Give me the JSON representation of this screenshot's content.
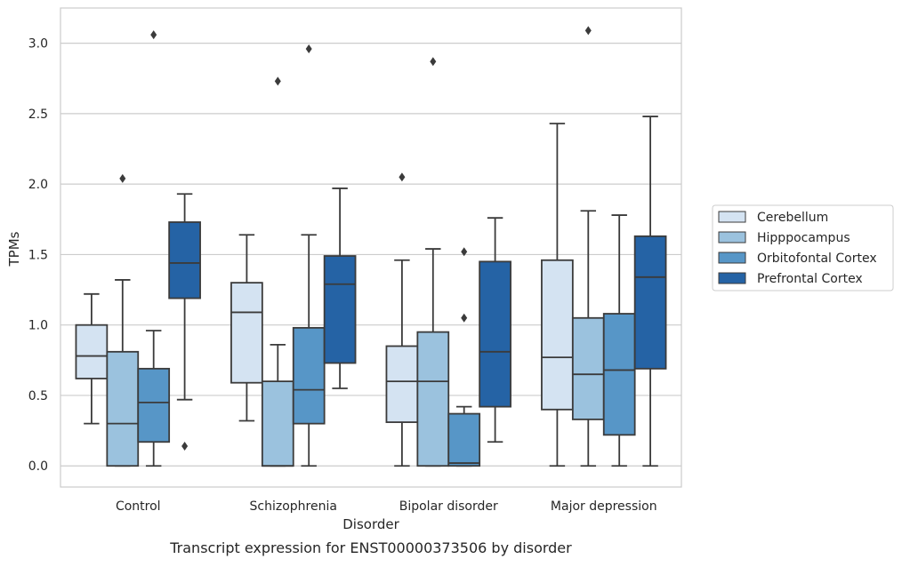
{
  "chart_data": {
    "type": "box",
    "xlabel": "Disorder",
    "ylabel": "TPMs",
    "caption": "Transcript expression for ENST00000373506 by disorder",
    "ylim": [
      -0.15,
      3.25
    ],
    "yticks": [
      0.0,
      0.5,
      1.0,
      1.5,
      2.0,
      2.5,
      3.0
    ],
    "ytick_labels": [
      "0.0",
      "0.5",
      "1.0",
      "1.5",
      "2.0",
      "2.5",
      "3.0"
    ],
    "grid": "horizontal",
    "legend_position": "right",
    "categories": [
      "Control",
      "Schizophrenia",
      "Bipolar disorder",
      "Major depression"
    ],
    "series": [
      {
        "name": "Cerebellum",
        "color": "#d4e3f2",
        "boxes": [
          {
            "min": 0.3,
            "q1": 0.62,
            "median": 0.78,
            "q3": 1.0,
            "max": 1.22,
            "outliers": []
          },
          {
            "min": 0.32,
            "q1": 0.59,
            "median": 1.09,
            "q3": 1.3,
            "max": 1.64,
            "outliers": []
          },
          {
            "min": 0.0,
            "q1": 0.31,
            "median": 0.6,
            "q3": 0.85,
            "max": 1.46,
            "outliers": [
              2.05
            ]
          },
          {
            "min": 0.0,
            "q1": 0.4,
            "median": 0.77,
            "q3": 1.46,
            "max": 2.43,
            "outliers": []
          }
        ]
      },
      {
        "name": "Hipppocampus",
        "color": "#9bc2de",
        "boxes": [
          {
            "min": 0.0,
            "q1": 0.0,
            "median": 0.3,
            "q3": 0.81,
            "max": 1.32,
            "outliers": [
              2.04
            ]
          },
          {
            "min": 0.0,
            "q1": 0.0,
            "median": 0.0,
            "q3": 0.6,
            "max": 0.86,
            "outliers": [
              2.73
            ]
          },
          {
            "min": 0.0,
            "q1": 0.0,
            "median": 0.6,
            "q3": 0.95,
            "max": 1.54,
            "outliers": [
              2.87
            ]
          },
          {
            "min": 0.0,
            "q1": 0.33,
            "median": 0.65,
            "q3": 1.05,
            "max": 1.81,
            "outliers": [
              3.09
            ]
          }
        ]
      },
      {
        "name": "Orbitofontal Cortex",
        "color": "#5796c7",
        "boxes": [
          {
            "min": 0.0,
            "q1": 0.17,
            "median": 0.45,
            "q3": 0.69,
            "max": 0.96,
            "outliers": [
              3.06
            ]
          },
          {
            "min": 0.0,
            "q1": 0.3,
            "median": 0.54,
            "q3": 0.98,
            "max": 1.64,
            "outliers": [
              2.96
            ]
          },
          {
            "min": 0.0,
            "q1": 0.0,
            "median": 0.02,
            "q3": 0.37,
            "max": 0.42,
            "outliers": [
              1.05,
              1.52
            ]
          },
          {
            "min": 0.0,
            "q1": 0.22,
            "median": 0.68,
            "q3": 1.08,
            "max": 1.78,
            "outliers": []
          }
        ]
      },
      {
        "name": "Prefrontal Cortex",
        "color": "#2563a5",
        "boxes": [
          {
            "min": 0.47,
            "q1": 1.19,
            "median": 1.44,
            "q3": 1.73,
            "max": 1.93,
            "outliers": [
              0.14
            ]
          },
          {
            "min": 0.55,
            "q1": 0.73,
            "median": 1.29,
            "q3": 1.49,
            "max": 1.97,
            "outliers": []
          },
          {
            "min": 0.17,
            "q1": 0.42,
            "median": 0.81,
            "q3": 1.45,
            "max": 1.76,
            "outliers": []
          },
          {
            "min": 0.0,
            "q1": 0.69,
            "median": 1.34,
            "q3": 1.63,
            "max": 2.48,
            "outliers": []
          }
        ]
      }
    ]
  }
}
